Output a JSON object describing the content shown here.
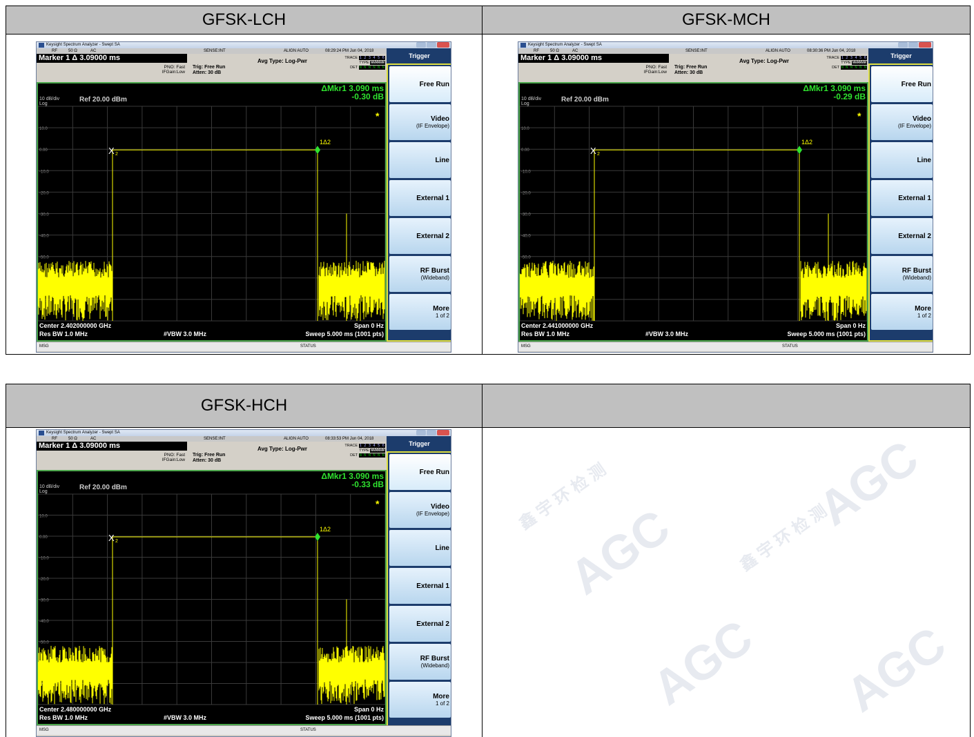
{
  "table": {
    "headers": [
      "GFSK-LCH",
      "GFSK-MCH",
      "GFSK-HCH",
      ""
    ]
  },
  "analyzers": [
    {
      "title": "Keysight Spectrum Analyzer - Swept SA",
      "status_bar": {
        "rf": "RF",
        "imp": "50 Ω",
        "ac": "AC",
        "sense": "SENSE:INT",
        "align": "ALIGN AUTO",
        "time": "08:29:24 PM Jun 04, 2018"
      },
      "marker": "Marker 1 Δ 3.09000 ms",
      "pno": "PNO: Fast",
      "ifgain": "IFGain:Low",
      "trig": "Trig: Free Run",
      "atten": "Atten: 30 dB",
      "avg_type": "Avg Type: Log-Pwr",
      "trace_label": "TRACE",
      "type_label": "TYPE",
      "det_label": "DET",
      "trace_vals": "1 2 3 4 5 6",
      "type_vals": "WWWWWW",
      "det_vals": "N N N N N N",
      "scale": "10 dB/div",
      "log": "Log",
      "ref": "Ref 20.00 dBm",
      "mkr_readout": "ΔMkr1 3.090 ms",
      "mkr_db": "-0.30 dB",
      "center": "Center 2.402000000 GHz",
      "span": "Span 0 Hz",
      "rbw": "Res BW 1.0 MHz",
      "vbw": "#VBW 3.0 MHz",
      "sweep": "Sweep  5.000 ms (1001 pts)",
      "msg": "MSG",
      "status": "STATUS"
    },
    {
      "title": "Keysight Spectrum Analyzer - Swept SA",
      "status_bar": {
        "rf": "RF",
        "imp": "50 Ω",
        "ac": "AC",
        "sense": "SENSE:INT",
        "align": "ALIGN AUTO",
        "time": "08:30:36 PM Jun 04, 2018"
      },
      "marker": "Marker 1 Δ 3.09000 ms",
      "pno": "PNO: Fast",
      "ifgain": "IFGain:Low",
      "trig": "Trig: Free Run",
      "atten": "Atten: 30 dB",
      "avg_type": "Avg Type: Log-Pwr",
      "trace_label": "TRACE",
      "type_label": "TYPE",
      "det_label": "DET",
      "trace_vals": "1 2 3 4 5 6",
      "type_vals": "WWWWWW",
      "det_vals": "N N N N N N",
      "scale": "10 dB/div",
      "log": "Log",
      "ref": "Ref 20.00 dBm",
      "mkr_readout": "ΔMkr1 3.090 ms",
      "mkr_db": "-0.29 dB",
      "center": "Center 2.441000000 GHz",
      "span": "Span 0 Hz",
      "rbw": "Res BW 1.0 MHz",
      "vbw": "#VBW 3.0 MHz",
      "sweep": "Sweep  5.000 ms (1001 pts)",
      "msg": "MSG",
      "status": "STATUS"
    },
    {
      "title": "Keysight Spectrum Analyzer - Swept SA",
      "status_bar": {
        "rf": "RF",
        "imp": "50 Ω",
        "ac": "AC",
        "sense": "SENSE:INT",
        "align": "ALIGN AUTO",
        "time": "08:33:53 PM Jun 04, 2018"
      },
      "marker": "Marker 1 Δ 3.09000 ms",
      "pno": "PNO: Fast",
      "ifgain": "IFGain:Low",
      "trig": "Trig: Free Run",
      "atten": "Atten: 30 dB",
      "avg_type": "Avg Type: Log-Pwr",
      "trace_label": "TRACE",
      "type_label": "TYPE",
      "det_label": "DET",
      "trace_vals": "1 2 3 4 5 6",
      "type_vals": "WWWWWW",
      "det_vals": "N N N N N N",
      "scale": "10 dB/div",
      "log": "Log",
      "ref": "Ref 20.00 dBm",
      "mkr_readout": "ΔMkr1 3.090 ms",
      "mkr_db": "-0.33 dB",
      "center": "Center 2.480000000 GHz",
      "span": "Span 0 Hz",
      "rbw": "Res BW 1.0 MHz",
      "vbw": "#VBW 3.0 MHz",
      "sweep": "Sweep  5.000 ms (1001 pts)",
      "msg": "MSG",
      "status": "STATUS"
    }
  ],
  "softkeys": {
    "menu_title": "Trigger",
    "items": [
      {
        "label": "Free Run",
        "sub": ""
      },
      {
        "label": "Video",
        "sub": "(IF Envelope)"
      },
      {
        "label": "Line",
        "sub": ""
      },
      {
        "label": "External 1",
        "sub": ""
      },
      {
        "label": "External 2",
        "sub": ""
      },
      {
        "label": "RF Burst",
        "sub": "(Wideband)"
      },
      {
        "label": "More",
        "sub": "1 of 2"
      }
    ]
  },
  "plot": {
    "y_ticks": [
      "10.0",
      "0.00",
      "-10.0",
      "-20.0",
      "-30.0",
      "-40.0",
      "-50.0",
      "-60.0",
      "-70.0"
    ],
    "marker_x": "X",
    "marker_x_sub": "2",
    "marker_1": "1Δ2",
    "star": "*",
    "trace_color": "#ffff00",
    "grid_color": "#3a3a3a"
  },
  "watermark": {
    "text": "AGC",
    "sub": "鑫 宇 环 检 测"
  }
}
